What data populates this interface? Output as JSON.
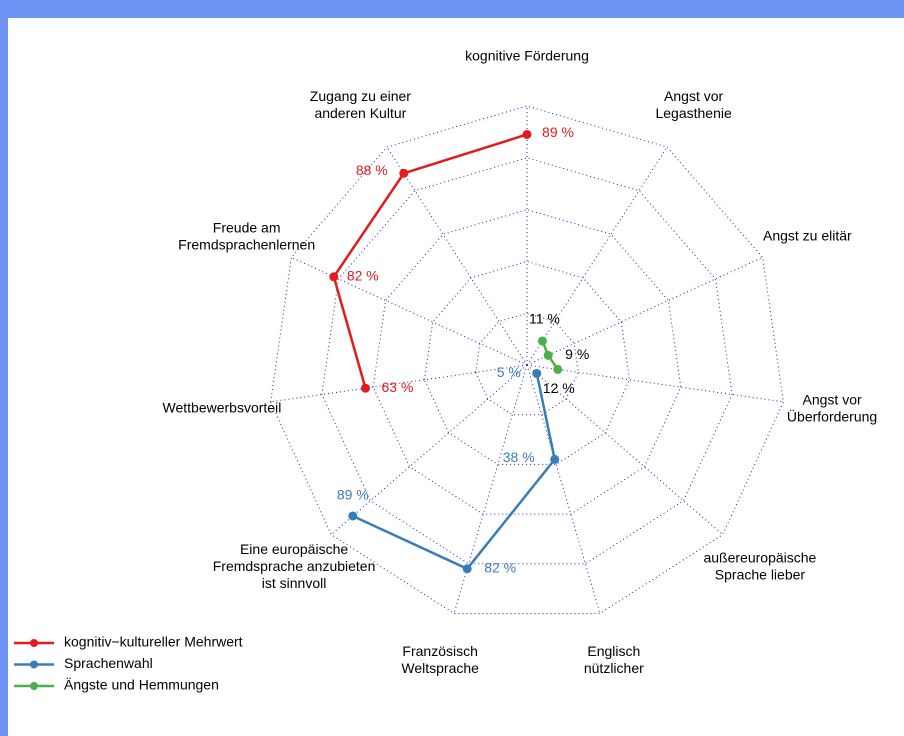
{
  "chart_data": {
    "type": "radar",
    "categories": [
      "Wettbewerbsvorteil",
      "Freude am\nFremdsprachenlernen",
      "Zugang zu einer\nanderen Kultur",
      "kognitive Förderung",
      "Angst vor\nLegasthenie",
      "Angst zu elitär",
      "Angst vor\nÜberforderung",
      "außereuropäische\nSprache lieber",
      "Englisch\nnützlicher",
      "Französisch\nWeltsprache",
      "Eine europäische\nFremdsprache anzubieten\nist sinnvoll"
    ],
    "rlim": [
      0,
      100
    ],
    "rticks": [
      20,
      40,
      60,
      80,
      100
    ],
    "grid": true,
    "legend": "bottom-left",
    "series": [
      {
        "name": "kognitiv−kultureller Mehrwert",
        "color": "#e41a1c",
        "label_color": "#e41a1c",
        "values": [
          63,
          82,
          88,
          89,
          null,
          null,
          null,
          null,
          null,
          null,
          null
        ],
        "value_labels": [
          "63 %",
          "82 %",
          "88 %",
          "89 %",
          null,
          null,
          null,
          null,
          null,
          null,
          null
        ]
      },
      {
        "name": "Sprachenwahl",
        "color": "#377eb8",
        "label_color": "#377eb8",
        "values": [
          null,
          null,
          null,
          null,
          null,
          null,
          null,
          5,
          38,
          82,
          89
        ],
        "value_labels": [
          null,
          null,
          null,
          null,
          null,
          null,
          null,
          "5 %",
          "38 %",
          "82 %",
          "89 %"
        ]
      },
      {
        "name": "Ängste und Hemmungen",
        "color": "#4daf4a",
        "label_color": "#000000",
        "values": [
          null,
          null,
          null,
          null,
          11,
          9,
          12,
          null,
          null,
          null,
          null
        ],
        "value_labels": [
          null,
          null,
          null,
          null,
          "11 %",
          "9 %",
          "12 %",
          null,
          null,
          null,
          null
        ]
      }
    ]
  }
}
